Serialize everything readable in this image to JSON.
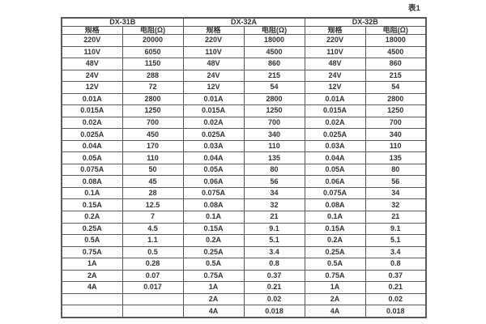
{
  "caption": "表1",
  "table": {
    "groups": [
      "DX-31B",
      "DX-32A",
      "DX-32B"
    ],
    "sub_headers": [
      "规格",
      "电阻(Ω)",
      "规格",
      "电阻(Ω)",
      "规格",
      "电阻(Ω)"
    ],
    "rows": [
      [
        "220V",
        "20000",
        "220V",
        "18000",
        "220V",
        "18000"
      ],
      [
        "110V",
        "6050",
        "110V",
        "4500",
        "110V",
        "4500"
      ],
      [
        "48V",
        "1150",
        "48V",
        "860",
        "48V",
        "860"
      ],
      [
        "24V",
        "288",
        "24V",
        "215",
        "24V",
        "215"
      ],
      [
        "12V",
        "72",
        "12V",
        "54",
        "12V",
        "54"
      ],
      [
        "0.01A",
        "2800",
        "0.01A",
        "2800",
        "0.01A",
        "2800"
      ],
      [
        "0.015A",
        "1250",
        "0.015A",
        "1250",
        "0.015A",
        "1250"
      ],
      [
        "0.02A",
        "700",
        "0.02A",
        "700",
        "0.02A",
        "700"
      ],
      [
        "0.025A",
        "450",
        "0.025A",
        "340",
        "0.025A",
        "340"
      ],
      [
        "0.04A",
        "170",
        "0.03A",
        "110",
        "0.03A",
        "110"
      ],
      [
        "0.05A",
        "110",
        "0.04A",
        "135",
        "0.04A",
        "135"
      ],
      [
        "0.075A",
        "50",
        "0.05A",
        "80",
        "0.05A",
        "80"
      ],
      [
        "0.08A",
        "45",
        "0.06A",
        "56",
        "0.06A",
        "56"
      ],
      [
        "0.1A",
        "28",
        "0.075A",
        "34",
        "0.075A",
        "34"
      ],
      [
        "0.15A",
        "12.5",
        "0.08A",
        "32",
        "0.08A",
        "32"
      ],
      [
        "0.2A",
        "7",
        "0.1A",
        "21",
        "0.1A",
        "21"
      ],
      [
        "0.25A",
        "4.5",
        "0.15A",
        "9.1",
        "0.15A",
        "9.1"
      ],
      [
        "0.5A",
        "1.1",
        "0.2A",
        "5.1",
        "0.2A",
        "5.1"
      ],
      [
        "0.75A",
        "0.5",
        "0.25A",
        "3.4",
        "0.25A",
        "3.4"
      ],
      [
        "1A",
        "0.28",
        "0.5A",
        "0.8",
        "0.5A",
        "0.8"
      ],
      [
        "2A",
        "0.07",
        "0.75A",
        "0.37",
        "0.75A",
        "0.37"
      ],
      [
        "4A",
        "0.017",
        "1A",
        "0.21",
        "1A",
        "0.21"
      ],
      [
        "",
        "",
        "2A",
        "0.02",
        "2A",
        "0.02"
      ],
      [
        "",
        "",
        "4A",
        "0.018",
        "4A",
        "0.018"
      ]
    ]
  },
  "colors": {
    "background": "#ffffff",
    "border": "#595959",
    "text": "#333333"
  }
}
